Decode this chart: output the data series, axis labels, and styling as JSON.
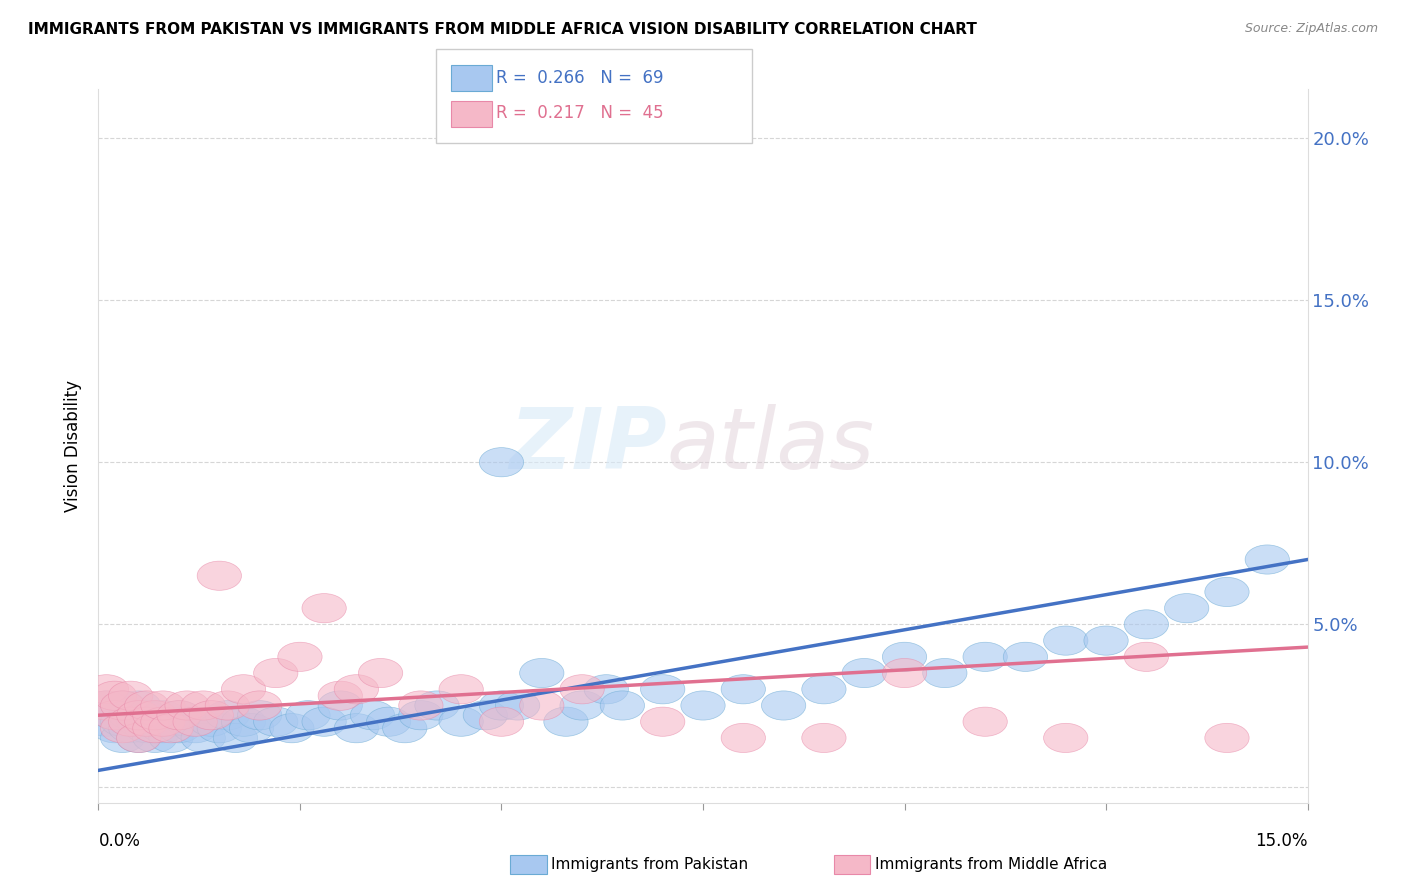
{
  "title": "IMMIGRANTS FROM PAKISTAN VS IMMIGRANTS FROM MIDDLE AFRICA VISION DISABILITY CORRELATION CHART",
  "source": "Source: ZipAtlas.com",
  "ylabel": "Vision Disability",
  "xlim": [
    0.0,
    0.15
  ],
  "ylim": [
    -0.005,
    0.215
  ],
  "yticks": [
    0.0,
    0.05,
    0.1,
    0.15,
    0.2
  ],
  "ytick_labels": [
    "",
    "5.0%",
    "10.0%",
    "15.0%",
    "20.0%"
  ],
  "xticks": [
    0.0,
    0.025,
    0.05,
    0.075,
    0.1,
    0.125,
    0.15
  ],
  "series1_label": "Immigrants from Pakistan",
  "series1_R": "0.266",
  "series1_N": "69",
  "series1_color": "#a8c8f0",
  "series1_edge_color": "#6aaad4",
  "series1_line_color": "#4472c4",
  "series2_label": "Immigrants from Middle Africa",
  "series2_R": "0.217",
  "series2_N": "45",
  "series2_color": "#f5b8c8",
  "series2_edge_color": "#e888a8",
  "series2_line_color": "#e07090",
  "watermark": "ZIPatlas",
  "background_color": "#ffffff",
  "pakistan_x": [
    0.001,
    0.001,
    0.002,
    0.002,
    0.003,
    0.003,
    0.003,
    0.004,
    0.004,
    0.005,
    0.005,
    0.005,
    0.006,
    0.006,
    0.007,
    0.007,
    0.008,
    0.008,
    0.009,
    0.009,
    0.01,
    0.01,
    0.011,
    0.012,
    0.013,
    0.014,
    0.015,
    0.016,
    0.017,
    0.018,
    0.019,
    0.02,
    0.022,
    0.024,
    0.026,
    0.028,
    0.03,
    0.032,
    0.034,
    0.036,
    0.038,
    0.04,
    0.042,
    0.045,
    0.048,
    0.05,
    0.052,
    0.055,
    0.058,
    0.06,
    0.063,
    0.065,
    0.05,
    0.07,
    0.075,
    0.08,
    0.085,
    0.09,
    0.095,
    0.1,
    0.105,
    0.11,
    0.115,
    0.12,
    0.125,
    0.13,
    0.135,
    0.14,
    0.145
  ],
  "pakistan_y": [
    0.02,
    0.025,
    0.018,
    0.022,
    0.015,
    0.02,
    0.025,
    0.018,
    0.022,
    0.015,
    0.02,
    0.025,
    0.018,
    0.022,
    0.015,
    0.02,
    0.018,
    0.022,
    0.015,
    0.02,
    0.018,
    0.022,
    0.02,
    0.018,
    0.015,
    0.02,
    0.018,
    0.022,
    0.015,
    0.02,
    0.018,
    0.022,
    0.02,
    0.018,
    0.022,
    0.02,
    0.025,
    0.018,
    0.022,
    0.02,
    0.018,
    0.022,
    0.025,
    0.02,
    0.022,
    0.025,
    0.025,
    0.035,
    0.02,
    0.025,
    0.03,
    0.025,
    0.1,
    0.03,
    0.025,
    0.03,
    0.025,
    0.03,
    0.035,
    0.04,
    0.035,
    0.04,
    0.04,
    0.045,
    0.045,
    0.05,
    0.055,
    0.06,
    0.07
  ],
  "middle_africa_x": [
    0.001,
    0.001,
    0.002,
    0.002,
    0.003,
    0.003,
    0.004,
    0.004,
    0.005,
    0.005,
    0.006,
    0.006,
    0.007,
    0.007,
    0.008,
    0.008,
    0.009,
    0.01,
    0.011,
    0.012,
    0.013,
    0.014,
    0.015,
    0.016,
    0.018,
    0.02,
    0.022,
    0.025,
    0.028,
    0.03,
    0.032,
    0.035,
    0.04,
    0.045,
    0.05,
    0.055,
    0.06,
    0.07,
    0.08,
    0.09,
    0.1,
    0.11,
    0.12,
    0.13,
    0.14
  ],
  "middle_africa_y": [
    0.025,
    0.03,
    0.022,
    0.028,
    0.018,
    0.025,
    0.02,
    0.028,
    0.015,
    0.022,
    0.02,
    0.025,
    0.018,
    0.022,
    0.02,
    0.025,
    0.018,
    0.022,
    0.025,
    0.02,
    0.025,
    0.022,
    0.065,
    0.025,
    0.03,
    0.025,
    0.035,
    0.04,
    0.055,
    0.028,
    0.03,
    0.035,
    0.025,
    0.03,
    0.02,
    0.025,
    0.03,
    0.02,
    0.015,
    0.015,
    0.035,
    0.02,
    0.015,
    0.04,
    0.015
  ]
}
